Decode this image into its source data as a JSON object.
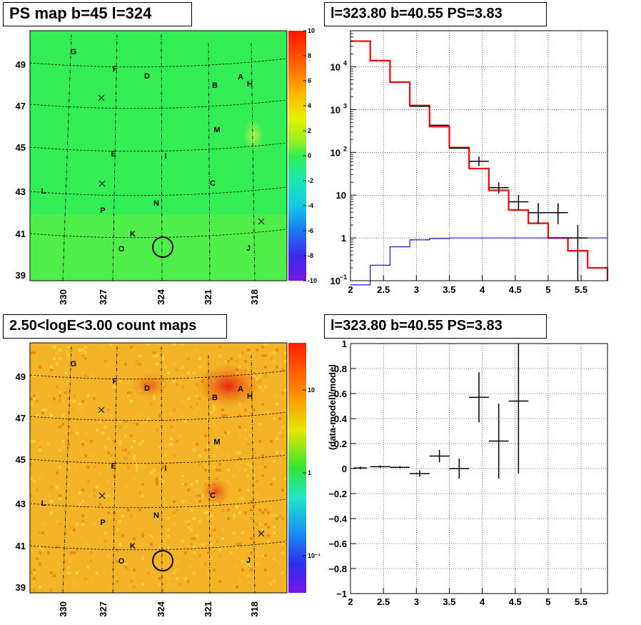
{
  "panels": {
    "ps_map": {
      "title": "PS map b=45 l=324"
    },
    "spectrum": {
      "title": "l=323.80 b=40.55 PS=3.83"
    },
    "count_map": {
      "title": "2.50<logE<3.00 count maps"
    },
    "residual": {
      "title": "l=323.80 b=40.55 PS=3.83"
    }
  },
  "map_axes": {
    "lat_ticks": [
      "49",
      "47",
      "45",
      "43",
      "41",
      "39"
    ],
    "lon_ticks": [
      "330",
      "327",
      "324",
      "321",
      "318"
    ]
  },
  "source_labels": [
    "G",
    "F",
    "D",
    "A",
    "H",
    "B",
    "M",
    "E",
    "I",
    "C",
    "L",
    "N",
    "P",
    "K",
    "O",
    "J"
  ],
  "colors": {
    "ps_background": "#33ee55",
    "count_background": "#f3b427",
    "model_line": "#ff0000",
    "background_line": "#0000cc",
    "data_points": "#000000"
  },
  "chart_data": [
    {
      "type": "heatmap",
      "title": "PS map b=45 l=324",
      "xlabel": "",
      "ylabel": "",
      "xlim": [
        332,
        316
      ],
      "ylim": [
        38.8,
        50.2
      ],
      "colorbar": {
        "ticks": [
          "10",
          "8",
          "6",
          "4",
          "2",
          "0",
          "-2",
          "-4",
          "-6",
          "-8",
          "-10"
        ],
        "range": [
          -10,
          10
        ]
      },
      "marked_position": {
        "l": 323.8,
        "b": 40.55
      }
    },
    {
      "type": "line",
      "title": "l=323.80 b=40.55 PS=3.83",
      "xlabel": "",
      "ylabel": "",
      "xlim": [
        2.0,
        5.9
      ],
      "ylim": [
        0.1,
        70000
      ],
      "yscale": "log",
      "x_ticks": [
        "2",
        "2.5",
        "3",
        "3.5",
        "4",
        "4.5",
        "5",
        "5.5"
      ],
      "grid": true,
      "series": [
        {
          "edges": [
            2.0,
            2.3,
            2.6,
            2.9,
            3.2,
            3.5,
            3.8,
            4.1,
            4.4,
            4.7,
            5.0,
            5.3,
            5.6,
            5.9
          ],
          "values": [
            40000,
            14000,
            4400,
            1250,
            400,
            130,
            42,
            13,
            4.5,
            2.2,
            1.0,
            0.5,
            0.2,
            0.1
          ]
        },
        {
          "edges": [
            2.0,
            2.3,
            2.6,
            2.9,
            3.2,
            3.5,
            3.8,
            4.1,
            4.4,
            4.7,
            5.0,
            5.3,
            5.6,
            5.9
          ],
          "values": [
            0.08,
            0.23,
            0.62,
            0.9,
            0.97,
            1.0,
            1.0,
            1.0,
            1.0,
            1.0,
            1.0,
            1.0,
            1.0,
            1.0
          ]
        }
      ],
      "points": [
        {
          "x": 3.05,
          "y": 1200,
          "xerr": 0.15
        },
        {
          "x": 3.35,
          "y": 430,
          "xerr": 0.15
        },
        {
          "x": 3.65,
          "y": 125,
          "xerr": 0.15
        },
        {
          "x": 3.95,
          "y": 62,
          "xerr": 0.15,
          "ylo": 48,
          "yhi": 80
        },
        {
          "x": 4.25,
          "y": 15,
          "xerr": 0.15,
          "ylo": 11,
          "yhi": 20
        },
        {
          "x": 4.55,
          "y": 7,
          "xerr": 0.15,
          "ylo": 4.5,
          "yhi": 10
        },
        {
          "x": 4.85,
          "y": 3.9,
          "xerr": 0.15,
          "ylo": 2.1,
          "yhi": 6.5
        },
        {
          "x": 5.15,
          "y": 3.9,
          "xerr": 0.15,
          "ylo": 2.1,
          "yhi": 6.5
        },
        {
          "x": 5.45,
          "y": 1.0,
          "xerr": 0.15,
          "ylo": 0.1,
          "yhi": 2.0
        }
      ]
    },
    {
      "type": "heatmap",
      "title": "2.50<logE<3.00 count maps",
      "xlabel": "",
      "ylabel": "",
      "xlim": [
        332,
        316
      ],
      "ylim": [
        38.8,
        50.2
      ],
      "colorbar": {
        "ticks": [
          "10",
          "1",
          "10⁻¹"
        ],
        "scale": "log"
      },
      "marked_position": {
        "l": 323.8,
        "b": 40.55
      }
    },
    {
      "type": "scatter",
      "title": "l=323.80 b=40.55 PS=3.83",
      "xlabel": "",
      "ylabel": "(data-model)/model",
      "xlim": [
        2.0,
        5.9
      ],
      "ylim": [
        -1,
        1
      ],
      "x_ticks": [
        "2",
        "2.5",
        "3",
        "3.5",
        "4",
        "4.5",
        "5",
        "5.5"
      ],
      "y_ticks": [
        "1",
        "0.8",
        "0.6",
        "0.4",
        "0.2",
        "0",
        "-0.2",
        "-0.4",
        "-0.6",
        "-0.8",
        "-1"
      ],
      "grid": true,
      "points": [
        {
          "x": 2.15,
          "y": 0.005,
          "xerr": 0.1,
          "yerr": 0.01
        },
        {
          "x": 2.45,
          "y": 0.015,
          "xerr": 0.15,
          "yerr": 0.01
        },
        {
          "x": 2.75,
          "y": 0.01,
          "xerr": 0.15,
          "yerr": 0.01
        },
        {
          "x": 3.05,
          "y": -0.04,
          "xerr": 0.15,
          "yerr": 0.025
        },
        {
          "x": 3.35,
          "y": 0.1,
          "xerr": 0.15,
          "yerr": 0.05
        },
        {
          "x": 3.65,
          "y": 0.0,
          "xerr": 0.15,
          "yerr": 0.08
        },
        {
          "x": 3.95,
          "y": 0.57,
          "xerr": 0.15,
          "yerr": 0.2
        },
        {
          "x": 4.25,
          "y": 0.22,
          "xerr": 0.15,
          "yerr": 0.3
        },
        {
          "x": 4.55,
          "y": 0.54,
          "xerr": 0.15,
          "yerr": 0.58
        }
      ]
    }
  ]
}
